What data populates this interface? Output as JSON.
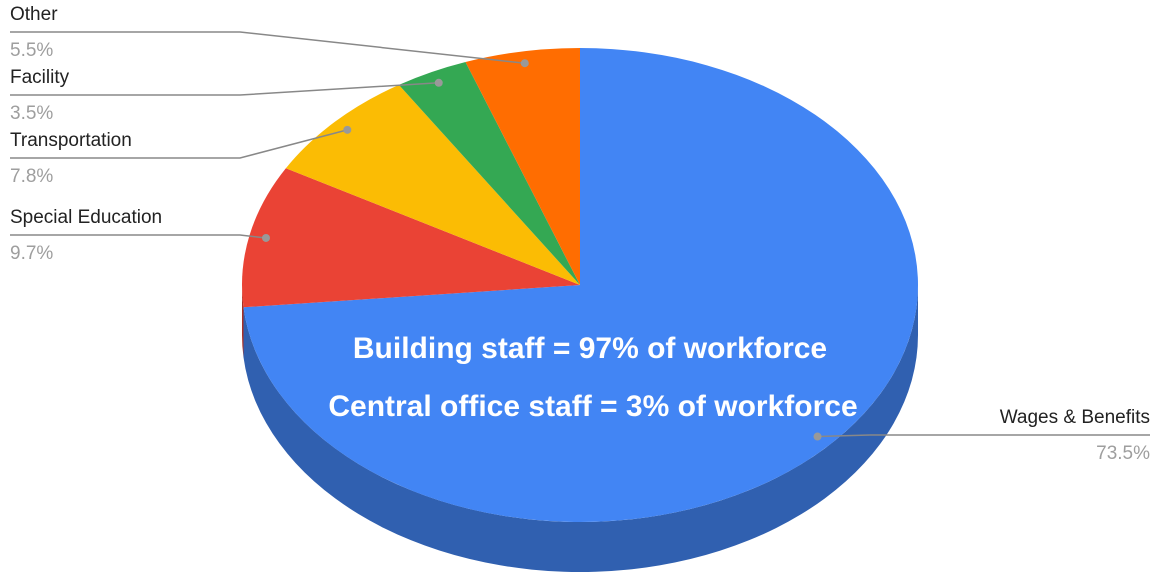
{
  "chart_data": {
    "type": "pie3d",
    "categories": [
      "Wages & Benefits",
      "Special Education",
      "Transportation",
      "Facility",
      "Other"
    ],
    "values": [
      73.5,
      9.7,
      7.8,
      3.5,
      5.5
    ],
    "value_labels": [
      "73.5%",
      "9.7%",
      "7.8%",
      "3.5%",
      "5.5%"
    ],
    "colors": [
      "#4285f4",
      "#ea4335",
      "#fbbc04",
      "#34a853",
      "#ff6d01"
    ],
    "annotations": [
      "Building staff = 97% of workforce",
      "Central office staff = 3% of workforce"
    ]
  }
}
